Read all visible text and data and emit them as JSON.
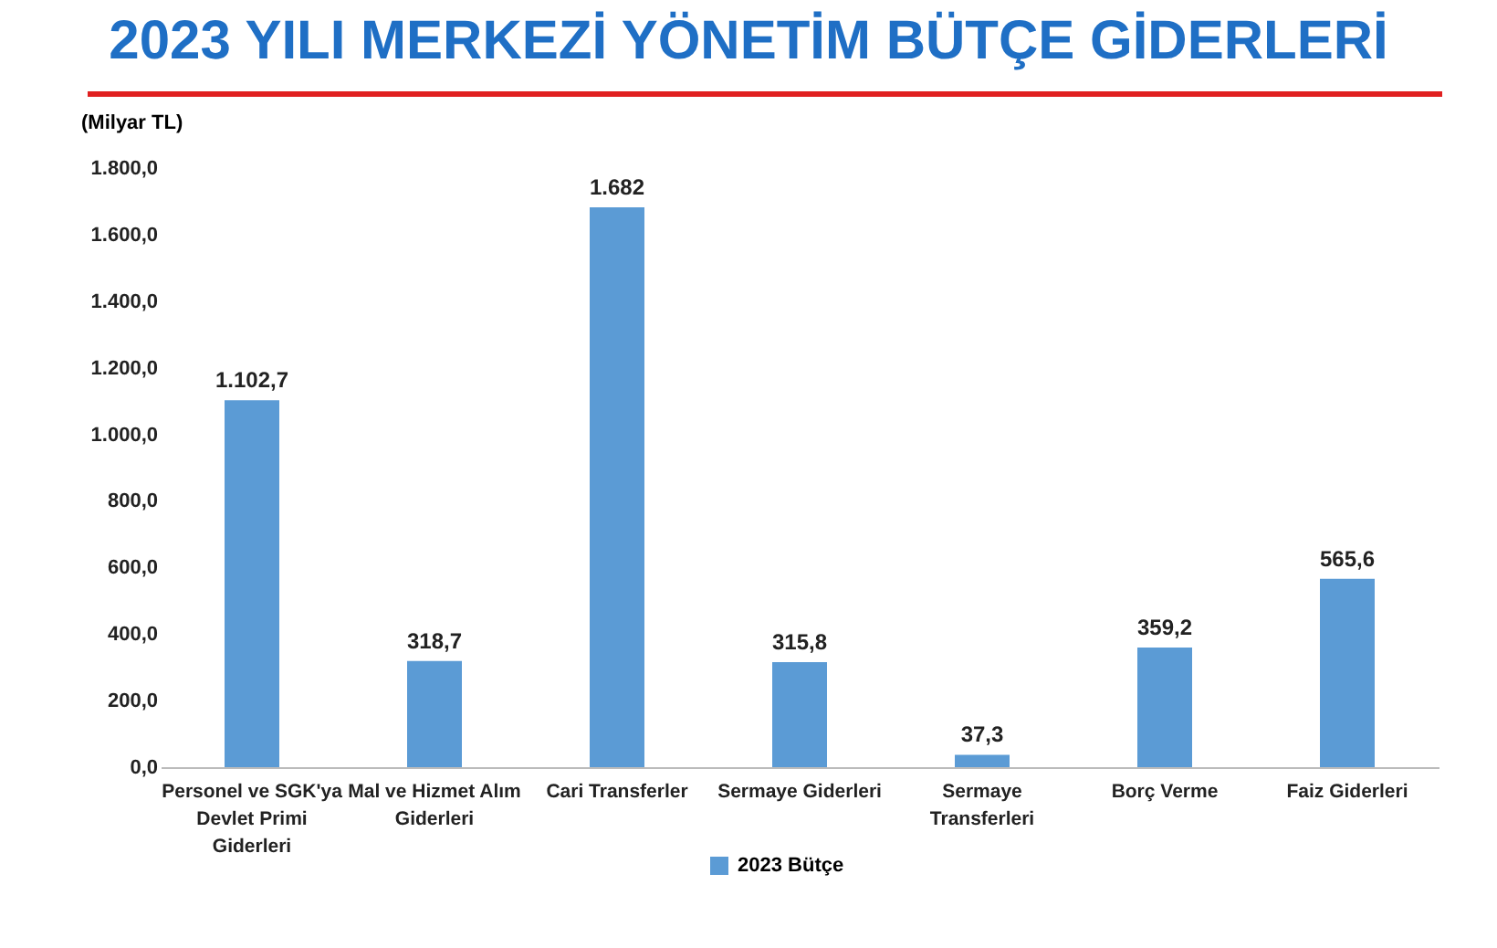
{
  "chart_data": {
    "type": "bar",
    "title": "2023 YILI MERKEZİ YÖNETİM BÜTÇE GİDERLERİ",
    "ylabel": "(Milyar TL)",
    "categories": [
      "Personel ve SGK'ya Devlet Primi Giderleri",
      "Mal ve Hizmet Alım Giderleri",
      "Cari Transferler",
      "Sermaye Giderleri",
      "Sermaye Transferleri",
      "Borç Verme",
      "Faiz Giderleri"
    ],
    "series": [
      {
        "name": "2023 Bütçe",
        "color": "#5b9bd5",
        "values": [
          1102.7,
          318.7,
          1682,
          315.8,
          37.3,
          359.2,
          565.6
        ],
        "value_labels": [
          "1.102,7",
          "318,7",
          "1.682",
          "315,8",
          "37,3",
          "359,2",
          "565,6"
        ]
      }
    ],
    "ylim": [
      0,
      1800
    ],
    "yticks": [
      {
        "value": 0,
        "label": "0,0"
      },
      {
        "value": 200,
        "label": "200,0"
      },
      {
        "value": 400,
        "label": "400,0"
      },
      {
        "value": 600,
        "label": "600,0"
      },
      {
        "value": 800,
        "label": "800,0"
      },
      {
        "value": 1000,
        "label": "1.000,0"
      },
      {
        "value": 1200,
        "label": "1.200,0"
      },
      {
        "value": 1400,
        "label": "1.400,0"
      },
      {
        "value": 1600,
        "label": "1.600,0"
      },
      {
        "value": 1800,
        "label": "1.800,0"
      }
    ],
    "grid": false,
    "legend": "bottom"
  }
}
